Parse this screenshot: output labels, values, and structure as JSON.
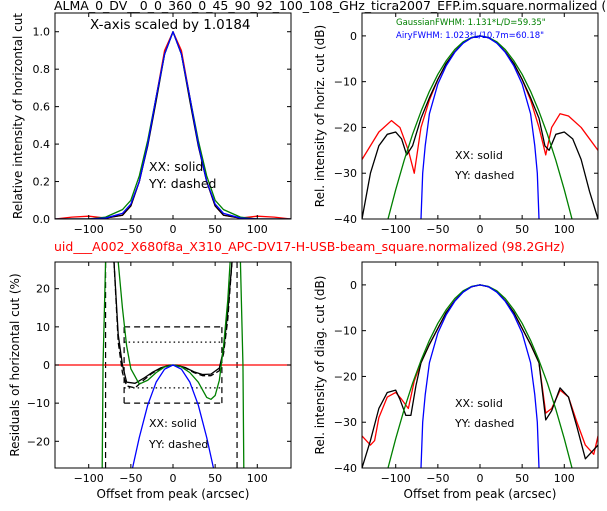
{
  "figure": {
    "top_title": "ALMA_0_DV__0_0_360_0_45_90_92_100_108_GHz_ticra2007_EFP.im.square.normalized (",
    "mid_title": "uid___A002_X680f8a_X310_APC-DV17-H-USB-beam_square.normalized (98.2GHz)",
    "colors": {
      "text": "#000000",
      "mid_title": "#ff0000",
      "red": "#ff0000",
      "black": "#000000",
      "green": "#008000",
      "blue": "#0000ff"
    }
  },
  "chart_data": [
    {
      "id": "p1",
      "type": "line",
      "title": "",
      "xlabel": "",
      "ylabel": "Relative intensity of horizontal cut",
      "xlim": [
        -140,
        140
      ],
      "ylim": [
        0,
        1.1
      ],
      "xticks": [
        -100,
        -50,
        0,
        50,
        100
      ],
      "xtick_labels": [
        "−100",
        "−50",
        "0",
        "50",
        "100"
      ],
      "yticks": [
        0.0,
        0.2,
        0.4,
        0.6,
        0.8,
        1.0
      ],
      "ytick_labels": [
        "0.0",
        "0.2",
        "0.4",
        "0.6",
        "0.8",
        "1.0"
      ],
      "annotations": [
        "X-axis scaled by 1.0184",
        "XX: solid",
        "YY: dashed"
      ],
      "series": [
        {
          "color": "#ff0000",
          "style": "solid",
          "x": [
            -140,
            -120,
            -100,
            -80,
            -60,
            -50,
            -40,
            -30,
            -20,
            -10,
            0,
            10,
            20,
            30,
            40,
            50,
            60,
            80,
            100,
            120,
            140
          ],
          "y": [
            0.0,
            0.01,
            0.015,
            0.005,
            0.02,
            0.07,
            0.2,
            0.4,
            0.65,
            0.9,
            1.0,
            0.9,
            0.65,
            0.4,
            0.2,
            0.07,
            0.02,
            0.005,
            0.015,
            0.01,
            0.0
          ]
        },
        {
          "color": "#000000",
          "style": "solid",
          "x": [
            -140,
            -100,
            -80,
            -60,
            -50,
            -40,
            -30,
            -20,
            -10,
            0,
            10,
            20,
            30,
            40,
            50,
            60,
            80,
            100,
            140
          ],
          "y": [
            0.0,
            0.0,
            0.005,
            0.02,
            0.07,
            0.2,
            0.39,
            0.63,
            0.88,
            1.0,
            0.88,
            0.63,
            0.39,
            0.2,
            0.07,
            0.02,
            0.005,
            0.0,
            0.0
          ]
        },
        {
          "color": "#008000",
          "style": "solid",
          "x": [
            -140,
            -100,
            -80,
            -60,
            -50,
            -40,
            -30,
            -20,
            -10,
            0,
            10,
            20,
            30,
            40,
            50,
            60,
            80,
            100,
            140
          ],
          "y": [
            0.0,
            0.0,
            0.01,
            0.05,
            0.1,
            0.23,
            0.42,
            0.65,
            0.88,
            1.0,
            0.88,
            0.65,
            0.42,
            0.23,
            0.1,
            0.05,
            0.01,
            0.0,
            0.0
          ]
        },
        {
          "color": "#0000ff",
          "style": "solid",
          "x": [
            -140,
            -100,
            -80,
            -60,
            -50,
            -40,
            -30,
            -20,
            -10,
            0,
            10,
            20,
            30,
            40,
            50,
            60,
            80,
            100,
            140
          ],
          "y": [
            0.0,
            0.0,
            0.005,
            0.03,
            0.08,
            0.2,
            0.4,
            0.65,
            0.88,
            1.0,
            0.88,
            0.65,
            0.4,
            0.2,
            0.08,
            0.03,
            0.005,
            0.0,
            0.0
          ]
        }
      ]
    },
    {
      "id": "p2",
      "type": "line",
      "title": "",
      "xlabel": "",
      "ylabel": "Rel. intensity of horiz. cut (dB)",
      "xlim": [
        -140,
        140
      ],
      "ylim": [
        -40,
        5
      ],
      "xticks": [
        -100,
        -50,
        0,
        50,
        100
      ],
      "xtick_labels": [
        "−100",
        "−50",
        "0",
        "50",
        "100"
      ],
      "yticks": [
        0,
        -10,
        -20,
        -30,
        -40
      ],
      "ytick_labels": [
        "0",
        "−10",
        "−20",
        "−30",
        "−40"
      ],
      "annotations": [
        "XX: solid",
        "YY: dashed"
      ],
      "legend_lines": [
        {
          "text": "GaussianFWHM: 1.131*L/D=59.35\"",
          "color": "#008000"
        },
        {
          "text": "AiryFWHM: 1.023*L/10.7m=60.18\"",
          "color": "#0000ff"
        }
      ],
      "series": [
        {
          "color": "#ff0000",
          "style": "solid",
          "x": [
            -140,
            -120,
            -105,
            -95,
            -85,
            -78,
            -70,
            -60,
            -50,
            -40,
            -30,
            -20,
            -10,
            0,
            10,
            20,
            30,
            40,
            50,
            60,
            70,
            78,
            85,
            95,
            105,
            120,
            140
          ],
          "y": [
            -27,
            -21,
            -18.5,
            -20,
            -25,
            -30,
            -20,
            -14,
            -9.5,
            -6,
            -3.5,
            -1.5,
            -0.4,
            0,
            -0.4,
            -1.5,
            -3.5,
            -6,
            -9.5,
            -14,
            -20,
            -26,
            -20,
            -17,
            -17.5,
            -20,
            -25
          ]
        },
        {
          "color": "#000000",
          "style": "solid",
          "x": [
            -140,
            -130,
            -120,
            -110,
            -100,
            -93,
            -87,
            -80,
            -70,
            -60,
            -50,
            -40,
            -30,
            -20,
            -10,
            0,
            10,
            20,
            30,
            40,
            50,
            60,
            70,
            77,
            82,
            90,
            100,
            110,
            120,
            130,
            140
          ],
          "y": [
            -40,
            -30,
            -24,
            -21.5,
            -21,
            -22.5,
            -26,
            -24,
            -18,
            -13.5,
            -9.5,
            -6,
            -3.5,
            -1.5,
            -0.4,
            0,
            -0.4,
            -1.5,
            -3.5,
            -6,
            -9.5,
            -13.5,
            -18,
            -24,
            -25,
            -21.5,
            -21,
            -22.5,
            -27,
            -34,
            -40
          ]
        },
        {
          "color": "#008000",
          "style": "solid",
          "x": [
            -110,
            -100,
            -90,
            -80,
            -70,
            -60,
            -50,
            -40,
            -30,
            -20,
            -10,
            0,
            10,
            20,
            30,
            40,
            50,
            60,
            70,
            80,
            90,
            100,
            110
          ],
          "y": [
            -40.6,
            -33.6,
            -27.2,
            -21.5,
            -16.5,
            -12.1,
            -8.4,
            -5.4,
            -3.0,
            -1.3,
            -0.34,
            0,
            -0.34,
            -1.3,
            -3.0,
            -5.4,
            -8.4,
            -12.1,
            -16.5,
            -21.5,
            -27.2,
            -33.6,
            -40.6
          ]
        },
        {
          "color": "#0000ff",
          "style": "solid",
          "x": [
            -70,
            -68,
            -65,
            -60,
            -50,
            -40,
            -30,
            -20,
            -10,
            0,
            10,
            20,
            30,
            40,
            50,
            60,
            65,
            68,
            70
          ],
          "y": [
            -40,
            -30,
            -24,
            -17,
            -10.5,
            -6.5,
            -3.6,
            -1.6,
            -0.4,
            0,
            -0.4,
            -1.6,
            -3.6,
            -6.5,
            -10.5,
            -17,
            -24,
            -30,
            -40
          ]
        }
      ]
    },
    {
      "id": "p3",
      "type": "line",
      "title": "",
      "xlabel": "Offset from peak (arcsec)",
      "ylabel": "Residuals of horizontal cut (%)",
      "xlim": [
        -140,
        140
      ],
      "ylim": [
        -27,
        27
      ],
      "xticks": [
        -100,
        -50,
        0,
        50,
        100
      ],
      "xtick_labels": [
        "−100",
        "−50",
        "0",
        "50",
        "100"
      ],
      "yticks": [
        20,
        10,
        0,
        -10,
        -20
      ],
      "ytick_labels": [
        "20",
        "10",
        "0",
        "−10",
        "−20"
      ],
      "annotations": [
        "XX: solid",
        "YY: dashed"
      ],
      "series": [
        {
          "color": "#ff0000",
          "style": "solid",
          "x": [
            -140,
            140
          ],
          "y": [
            0,
            0
          ]
        },
        {
          "color": "#000000",
          "style": "solid",
          "x": [
            -70,
            -65,
            -60,
            -55,
            -45,
            -35,
            -25,
            -15,
            -5,
            0,
            5,
            15,
            25,
            35,
            45,
            55,
            60,
            65,
            70
          ],
          "y": [
            27,
            8,
            0,
            -4.5,
            -4.8,
            -3.5,
            -2,
            -0.8,
            -0.1,
            0,
            -0.1,
            -0.7,
            -1.8,
            -2.5,
            -2.4,
            -0.8,
            4,
            14,
            27
          ]
        },
        {
          "color": "#000000",
          "style": "dashed",
          "x": [
            -70,
            -65,
            -60,
            -55,
            -45,
            -35,
            -25,
            -15,
            -5,
            0,
            5,
            15,
            25,
            35,
            45,
            55,
            60,
            65,
            70
          ],
          "y": [
            27,
            6,
            -2,
            -5.5,
            -6,
            -4,
            -2.2,
            -1,
            -0.2,
            0,
            -0.2,
            -0.8,
            -2,
            -2.8,
            -2.8,
            -1.5,
            3,
            12,
            27
          ]
        },
        {
          "color": "#008000",
          "style": "solid",
          "x": [
            -84,
            -83,
            -80,
            -75,
            -70,
            -65,
            -60,
            -55,
            -50,
            -40,
            -30,
            -20,
            -10,
            0,
            10,
            20,
            30,
            40,
            45,
            50,
            55,
            60,
            65,
            70,
            75,
            80,
            83,
            84
          ],
          "y": [
            -27,
            0,
            27,
            40,
            40,
            27,
            15,
            5,
            -1,
            -5,
            -4,
            -2,
            -0.5,
            0,
            -0.5,
            -2,
            -4.5,
            -8.5,
            -9,
            -8,
            -4,
            5,
            17,
            35,
            40,
            27,
            0,
            -27
          ]
        },
        {
          "color": "#0000ff",
          "style": "solid",
          "x": [
            -48,
            -40,
            -30,
            -20,
            -10,
            0,
            10,
            20,
            30,
            40,
            48
          ],
          "y": [
            -27,
            -19,
            -10.5,
            -4.5,
            -1.1,
            0,
            -1.1,
            -4.5,
            -10.5,
            -19,
            -27
          ]
        }
      ],
      "guides": [
        {
          "style": "dashed",
          "x": [
            -80,
            -80
          ],
          "y": [
            -27,
            27
          ]
        },
        {
          "style": "dashed",
          "x": [
            76,
            76
          ],
          "y": [
            -27,
            27
          ]
        },
        {
          "style": "dashed",
          "x": [
            -58,
            58
          ],
          "y": [
            10,
            10
          ]
        },
        {
          "style": "dashed",
          "x": [
            -58,
            58
          ],
          "y": [
            -10,
            -10
          ]
        },
        {
          "style": "dashed",
          "x": [
            -58,
            -58
          ],
          "y": [
            -10,
            10
          ]
        },
        {
          "style": "dashed",
          "x": [
            58,
            58
          ],
          "y": [
            -10,
            10
          ]
        },
        {
          "style": "dotted",
          "x": [
            -58,
            58
          ],
          "y": [
            6,
            6
          ]
        },
        {
          "style": "dotted",
          "x": [
            -58,
            58
          ],
          "y": [
            -6,
            -6
          ]
        }
      ]
    },
    {
      "id": "p4",
      "type": "line",
      "title": "",
      "xlabel": "Offset from peak (arcsec)",
      "ylabel": "Rel. intensity of diag. cut (dB)",
      "xlim": [
        -140,
        140
      ],
      "ylim": [
        -40,
        5
      ],
      "xticks": [
        -100,
        -50,
        0,
        50,
        100
      ],
      "xtick_labels": [
        "−100",
        "−50",
        "0",
        "50",
        "100"
      ],
      "yticks": [
        0,
        -10,
        -20,
        -30,
        -40
      ],
      "ytick_labels": [
        "0",
        "−10",
        "−20",
        "−30",
        "−40"
      ],
      "annotations": [
        "XX: solid",
        "YY: dashed"
      ],
      "series": [
        {
          "color": "#ff0000",
          "style": "solid",
          "x": [
            -140,
            -130,
            -125,
            -120,
            -110,
            -100,
            -93,
            -85,
            -78,
            -70,
            -60,
            -50,
            -40,
            -30,
            -20,
            -10,
            0,
            10,
            20,
            30,
            40,
            50,
            60,
            70,
            78,
            85,
            95,
            105,
            115,
            125,
            135,
            140
          ],
          "y": [
            -33,
            -35,
            -34,
            -29,
            -24.5,
            -23.5,
            -25,
            -27,
            -21,
            -17,
            -13,
            -9.5,
            -6,
            -3.5,
            -1.5,
            -0.4,
            0,
            -0.4,
            -1.5,
            -3.5,
            -6,
            -9.5,
            -13,
            -17,
            -28,
            -27,
            -23,
            -24.5,
            -30,
            -35,
            -37,
            -33
          ]
        },
        {
          "color": "#000000",
          "style": "solid",
          "x": [
            -140,
            -130,
            -120,
            -110,
            -100,
            -95,
            -88,
            -82,
            -76,
            -70,
            -60,
            -50,
            -40,
            -30,
            -20,
            -10,
            0,
            10,
            20,
            30,
            40,
            50,
            60,
            70,
            78,
            85,
            95,
            105,
            115,
            125,
            135,
            140
          ],
          "y": [
            -40,
            -34,
            -27,
            -23.5,
            -23,
            -25,
            -28.5,
            -28.5,
            -22,
            -17,
            -13,
            -9.5,
            -6,
            -3.5,
            -1.5,
            -0.4,
            0,
            -0.4,
            -1.5,
            -3.5,
            -6,
            -9.5,
            -13,
            -17,
            -29.5,
            -27.5,
            -22.5,
            -24.5,
            -31,
            -38,
            -36,
            -35
          ]
        },
        {
          "color": "#008000",
          "style": "solid",
          "x": [
            -110,
            -100,
            -90,
            -80,
            -70,
            -60,
            -50,
            -40,
            -30,
            -20,
            -10,
            0,
            10,
            20,
            30,
            40,
            50,
            60,
            70,
            80,
            90,
            100,
            110
          ],
          "y": [
            -40.6,
            -33.6,
            -27.2,
            -21.5,
            -16.5,
            -12.1,
            -8.4,
            -5.4,
            -3.0,
            -1.3,
            -0.34,
            0,
            -0.34,
            -1.3,
            -3.0,
            -5.4,
            -8.4,
            -12.1,
            -16.5,
            -21.5,
            -27.2,
            -33.6,
            -40.6
          ]
        },
        {
          "color": "#0000ff",
          "style": "solid",
          "x": [
            -70,
            -68,
            -65,
            -60,
            -50,
            -40,
            -30,
            -20,
            -10,
            0,
            10,
            20,
            30,
            40,
            50,
            60,
            65,
            68,
            70
          ],
          "y": [
            -40,
            -30,
            -24,
            -17,
            -10.5,
            -6.5,
            -3.6,
            -1.6,
            -0.4,
            0,
            -0.4,
            -1.6,
            -3.6,
            -6.5,
            -10.5,
            -17,
            -24,
            -30,
            -40
          ]
        }
      ]
    }
  ]
}
